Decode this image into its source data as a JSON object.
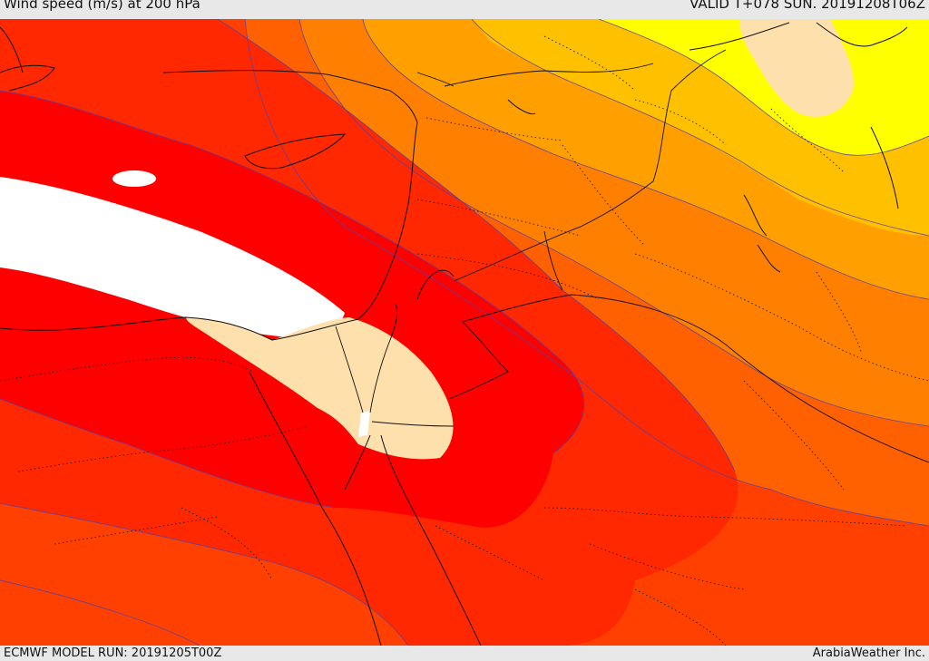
{
  "header": {
    "title": "Wind speed (m/s) at 200 hPa",
    "valid": "VALID T+078 SUN. 20191208T06Z"
  },
  "footer": {
    "model_run": "ECMWF MODEL RUN: 20191205T00Z",
    "brand": "ArabiaWeather Inc."
  },
  "colors": {
    "band_orange_dark": "#ff4000",
    "band_red_orange": "#ff2800",
    "band_red": "#ff0000",
    "band_white": "#ffffff",
    "band_peach": "#fde0ac",
    "band_orange": "#ff6000",
    "band_orange_light": "#ff8000",
    "band_amber": "#ffa000",
    "band_gold": "#ffc000",
    "band_yellow": "#ffff00",
    "contour_line": "#5b3fa6",
    "coastline": "#111111"
  }
}
